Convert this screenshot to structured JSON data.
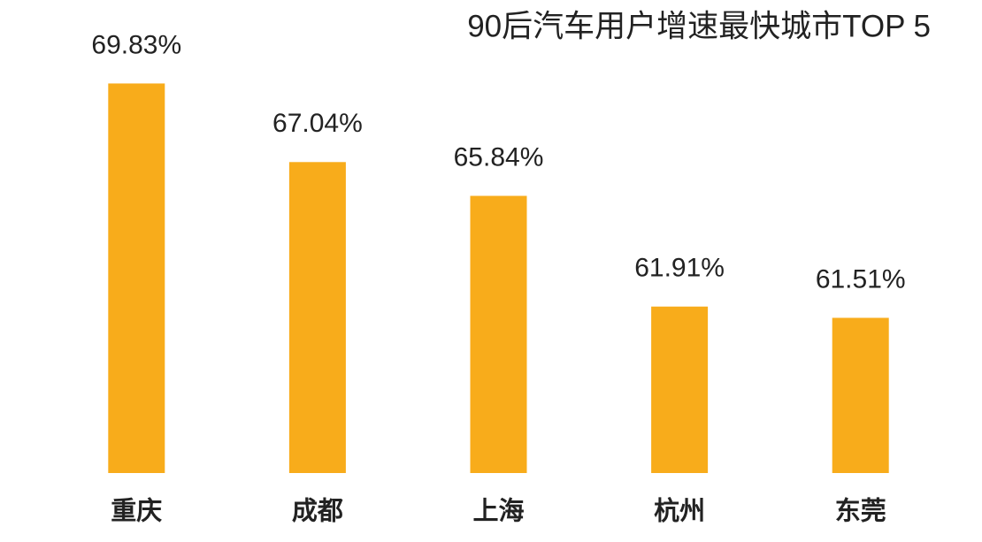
{
  "chart_data": {
    "type": "bar",
    "title": "90后汽车用户增速最快城市TOP 5",
    "categories": [
      "重庆",
      "成都",
      "上海",
      "杭州",
      "东莞"
    ],
    "values": [
      69.83,
      67.04,
      65.84,
      61.91,
      61.51
    ],
    "value_labels": [
      "69.83%",
      "67.04%",
      "65.84%",
      "61.91%",
      "61.51%"
    ],
    "color": "#f8ac1b",
    "ylim": [
      56,
      70
    ]
  }
}
